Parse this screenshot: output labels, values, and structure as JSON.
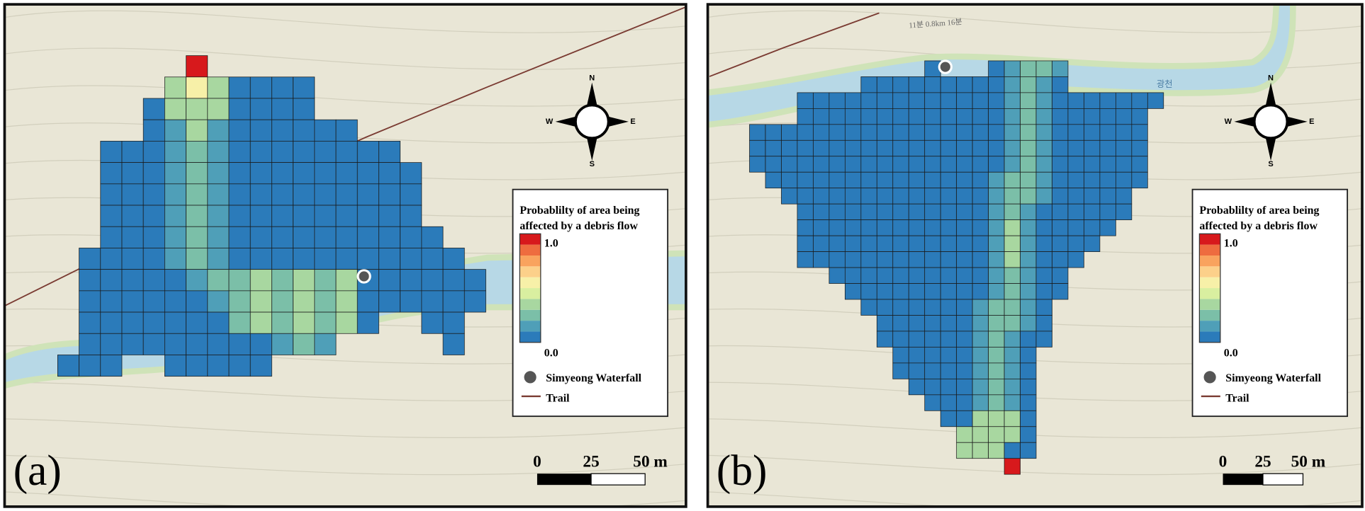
{
  "panels": [
    {
      "label": "(a)",
      "compass": {
        "n": "N",
        "e": "E",
        "s": "S",
        "w": "W"
      },
      "legend": {
        "title": [
          "Probablilty of area being",
          "affected by a debris flow"
        ],
        "max": "1.0",
        "min": "0.0",
        "items": [
          "Simyeong Waterfall",
          "Trail"
        ]
      },
      "scale": [
        "0",
        "25",
        "50 m"
      ],
      "map_labels": []
    },
    {
      "label": "(b)",
      "compass": {
        "n": "N",
        "e": "E",
        "s": "S",
        "w": "W"
      },
      "legend": {
        "title": [
          "Probablilty of area being",
          "affected by a debris flow"
        ],
        "max": "1.0",
        "min": "0.0",
        "items": [
          "Simyeong Waterfall",
          "Trail"
        ]
      },
      "scale": [
        "0",
        "25",
        "50 m"
      ],
      "map_labels": [
        "11분 0.8km 16분",
        "광천"
      ]
    }
  ]
}
